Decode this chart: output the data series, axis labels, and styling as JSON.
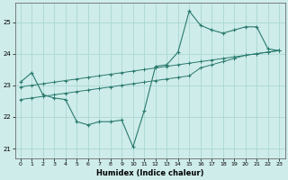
{
  "xlabel": "Humidex (Indice chaleur)",
  "background_color": "#ceecea",
  "grid_color": "#aad8d4",
  "line_color": "#2a7a6e",
  "xlim": [
    -0.5,
    23.5
  ],
  "ylim": [
    20.7,
    25.6
  ],
  "yticks": [
    21,
    22,
    23,
    24,
    25
  ],
  "xticks": [
    0,
    1,
    2,
    3,
    4,
    5,
    6,
    7,
    8,
    9,
    10,
    11,
    12,
    13,
    14,
    15,
    16,
    17,
    18,
    19,
    20,
    21,
    22,
    23
  ],
  "series1_x": [
    0,
    1,
    2,
    3,
    4,
    5,
    6,
    7,
    8,
    9,
    10,
    11,
    12,
    13,
    14,
    15,
    16,
    17,
    18,
    19,
    20,
    21,
    22,
    23
  ],
  "series1_y": [
    23.1,
    23.4,
    22.7,
    22.6,
    22.55,
    21.85,
    21.75,
    21.85,
    21.85,
    21.9,
    21.05,
    22.2,
    23.6,
    23.65,
    24.05,
    25.35,
    24.9,
    24.75,
    24.65,
    24.75,
    24.85,
    24.85,
    24.15,
    24.1
  ],
  "series2_x": [
    0,
    1,
    2,
    3,
    4,
    5,
    6,
    7,
    8,
    9,
    10,
    11,
    12,
    13,
    14,
    15,
    16,
    17,
    18,
    19,
    20,
    21,
    22,
    23
  ],
  "series2_y": [
    22.95,
    23.0,
    23.05,
    23.1,
    23.15,
    23.2,
    23.25,
    23.3,
    23.35,
    23.4,
    23.45,
    23.5,
    23.55,
    23.6,
    23.65,
    23.7,
    23.75,
    23.8,
    23.85,
    23.9,
    23.95,
    24.0,
    24.05,
    24.1
  ],
  "series3_x": [
    0,
    1,
    2,
    3,
    4,
    5,
    6,
    7,
    8,
    9,
    10,
    11,
    12,
    13,
    14,
    15,
    16,
    17,
    18,
    19,
    20,
    21,
    22,
    23
  ],
  "series3_y": [
    22.55,
    22.6,
    22.65,
    22.7,
    22.75,
    22.8,
    22.85,
    22.9,
    22.95,
    23.0,
    23.05,
    23.1,
    23.15,
    23.2,
    23.25,
    23.3,
    23.55,
    23.65,
    23.75,
    23.85,
    23.95,
    24.0,
    24.05,
    24.1
  ]
}
